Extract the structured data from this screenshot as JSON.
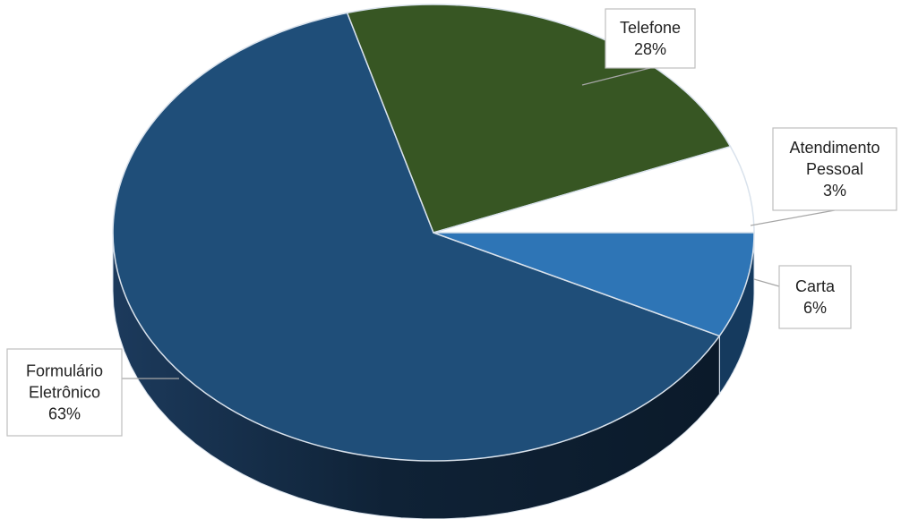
{
  "chart_data": {
    "type": "pie",
    "categories": [
      "Formulário Eletrônico",
      "Telefone",
      "Atendimento Pessoal",
      "Carta"
    ],
    "values": [
      63,
      28,
      3,
      6
    ],
    "labels": [
      {
        "lines": [
          "Formulário",
          "Eletrônico",
          "63%"
        ]
      },
      {
        "lines": [
          "Telefone",
          "28%"
        ]
      },
      {
        "lines": [
          "Atendimento",
          "Pessoal",
          "3%"
        ]
      },
      {
        "lines": [
          "Carta",
          "6%"
        ]
      }
    ],
    "colors": [
      "#1f4e79",
      "#375623",
      "#ffffff",
      "#2e75b6"
    ],
    "side_color": "#13283f",
    "legend": "none",
    "style": "3d-pie"
  }
}
